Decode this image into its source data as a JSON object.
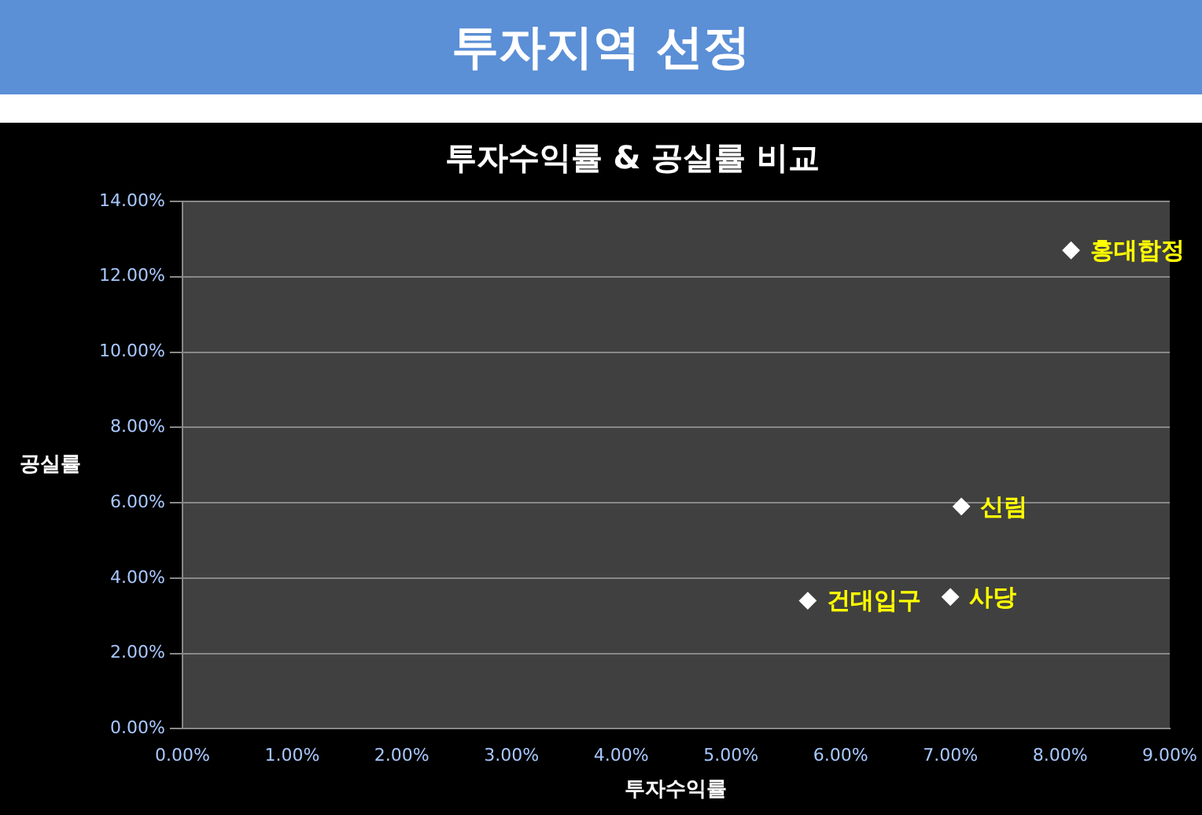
{
  "chart_data": {
    "type": "scatter",
    "title": "투자지역 선정",
    "subtitle": "투자수익률 & 공실률 비교",
    "xlabel": "투자수익률",
    "ylabel": "공실률",
    "series": [
      {
        "color": "#ffffff",
        "x": [
          8.1,
          7.1,
          5.7,
          7.0
        ],
        "values": [
          12.7,
          5.9,
          3.4,
          3.5
        ]
      }
    ],
    "annotations": [
      {
        "text": "홍대합정",
        "x": 8.1,
        "y": 12.7
      },
      {
        "text": "신림",
        "x": 7.1,
        "y": 5.9
      },
      {
        "text": "건대입구",
        "x": 5.7,
        "y": 3.4
      },
      {
        "text": "사당",
        "x": 7.0,
        "y": 3.5
      }
    ],
    "xlim": [
      0,
      9
    ],
    "xticks": [
      {
        "value": 0,
        "label": "0.00%"
      },
      {
        "value": 1,
        "label": "1.00%"
      },
      {
        "value": 2,
        "label": "2.00%"
      },
      {
        "value": 3,
        "label": "3.00%"
      },
      {
        "value": 4,
        "label": "4.00%"
      },
      {
        "value": 5,
        "label": "5.00%"
      },
      {
        "value": 6,
        "label": "6.00%"
      },
      {
        "value": 7,
        "label": "7.00%"
      },
      {
        "value": 8,
        "label": "8.00%"
      },
      {
        "value": 9,
        "label": "9.00%"
      }
    ],
    "ylim": [
      0,
      14
    ],
    "yticks": [
      {
        "value": 0,
        "label": "0.00%"
      },
      {
        "value": 2,
        "label": "2.00%"
      },
      {
        "value": 4,
        "label": "4.00%"
      },
      {
        "value": 6,
        "label": "6.00%"
      },
      {
        "value": 8,
        "label": "8.00%"
      },
      {
        "value": 10,
        "label": "10.00%"
      },
      {
        "value": 12,
        "label": "12.00%"
      },
      {
        "value": 14,
        "label": "14.00%"
      }
    ],
    "grid": "y",
    "marker": "diamond",
    "legend": false
  }
}
